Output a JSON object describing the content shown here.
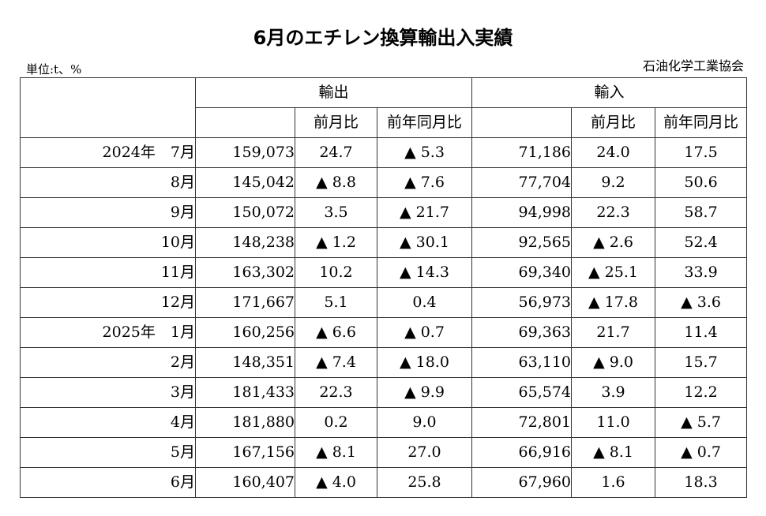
{
  "title": "6月のエチレン換算輸出入実績",
  "unit_label": "単位:t、%",
  "organization": "石油化学工業協会",
  "headers": {
    "export": "輸出",
    "import": "輸入",
    "mom": "前月比",
    "yoy": "前年同月比"
  },
  "rows": [
    {
      "period": "2024年　7月",
      "export": "159,073",
      "export_mom": "24.7",
      "export_yoy": "▲ 5.3",
      "import": "71,186",
      "import_mom": "24.0",
      "import_yoy": "17.5"
    },
    {
      "period": "8月",
      "export": "145,042",
      "export_mom": "▲ 8.8",
      "export_yoy": "▲ 7.6",
      "import": "77,704",
      "import_mom": "9.2",
      "import_yoy": "50.6"
    },
    {
      "period": "9月",
      "export": "150,072",
      "export_mom": "3.5",
      "export_yoy": "▲ 21.7",
      "import": "94,998",
      "import_mom": "22.3",
      "import_yoy": "58.7"
    },
    {
      "period": "10月",
      "export": "148,238",
      "export_mom": "▲ 1.2",
      "export_yoy": "▲ 30.1",
      "import": "92,565",
      "import_mom": "▲ 2.6",
      "import_yoy": "52.4"
    },
    {
      "period": "11月",
      "export": "163,302",
      "export_mom": "10.2",
      "export_yoy": "▲ 14.3",
      "import": "69,340",
      "import_mom": "▲ 25.1",
      "import_yoy": "33.9"
    },
    {
      "period": "12月",
      "export": "171,667",
      "export_mom": "5.1",
      "export_yoy": "0.4",
      "import": "56,973",
      "import_mom": "▲ 17.8",
      "import_yoy": "▲ 3.6"
    },
    {
      "period": "2025年　1月",
      "export": "160,256",
      "export_mom": "▲ 6.6",
      "export_yoy": "▲ 0.7",
      "import": "69,363",
      "import_mom": "21.7",
      "import_yoy": "11.4"
    },
    {
      "period": "2月",
      "export": "148,351",
      "export_mom": "▲ 7.4",
      "export_yoy": "▲ 18.0",
      "import": "63,110",
      "import_mom": "▲ 9.0",
      "import_yoy": "15.7"
    },
    {
      "period": "3月",
      "export": "181,433",
      "export_mom": "22.3",
      "export_yoy": "▲ 9.9",
      "import": "65,574",
      "import_mom": "3.9",
      "import_yoy": "12.2"
    },
    {
      "period": "4月",
      "export": "181,880",
      "export_mom": "0.2",
      "export_yoy": "9.0",
      "import": "72,801",
      "import_mom": "11.0",
      "import_yoy": "▲ 5.7"
    },
    {
      "period": "5月",
      "export": "167,156",
      "export_mom": "▲ 8.1",
      "export_yoy": "27.0",
      "import": "66,916",
      "import_mom": "▲ 8.1",
      "import_yoy": "▲ 0.7"
    },
    {
      "period": "6月",
      "export": "160,407",
      "export_mom": "▲ 4.0",
      "export_yoy": "25.8",
      "import": "67,960",
      "import_mom": "1.6",
      "import_yoy": "18.3"
    }
  ]
}
